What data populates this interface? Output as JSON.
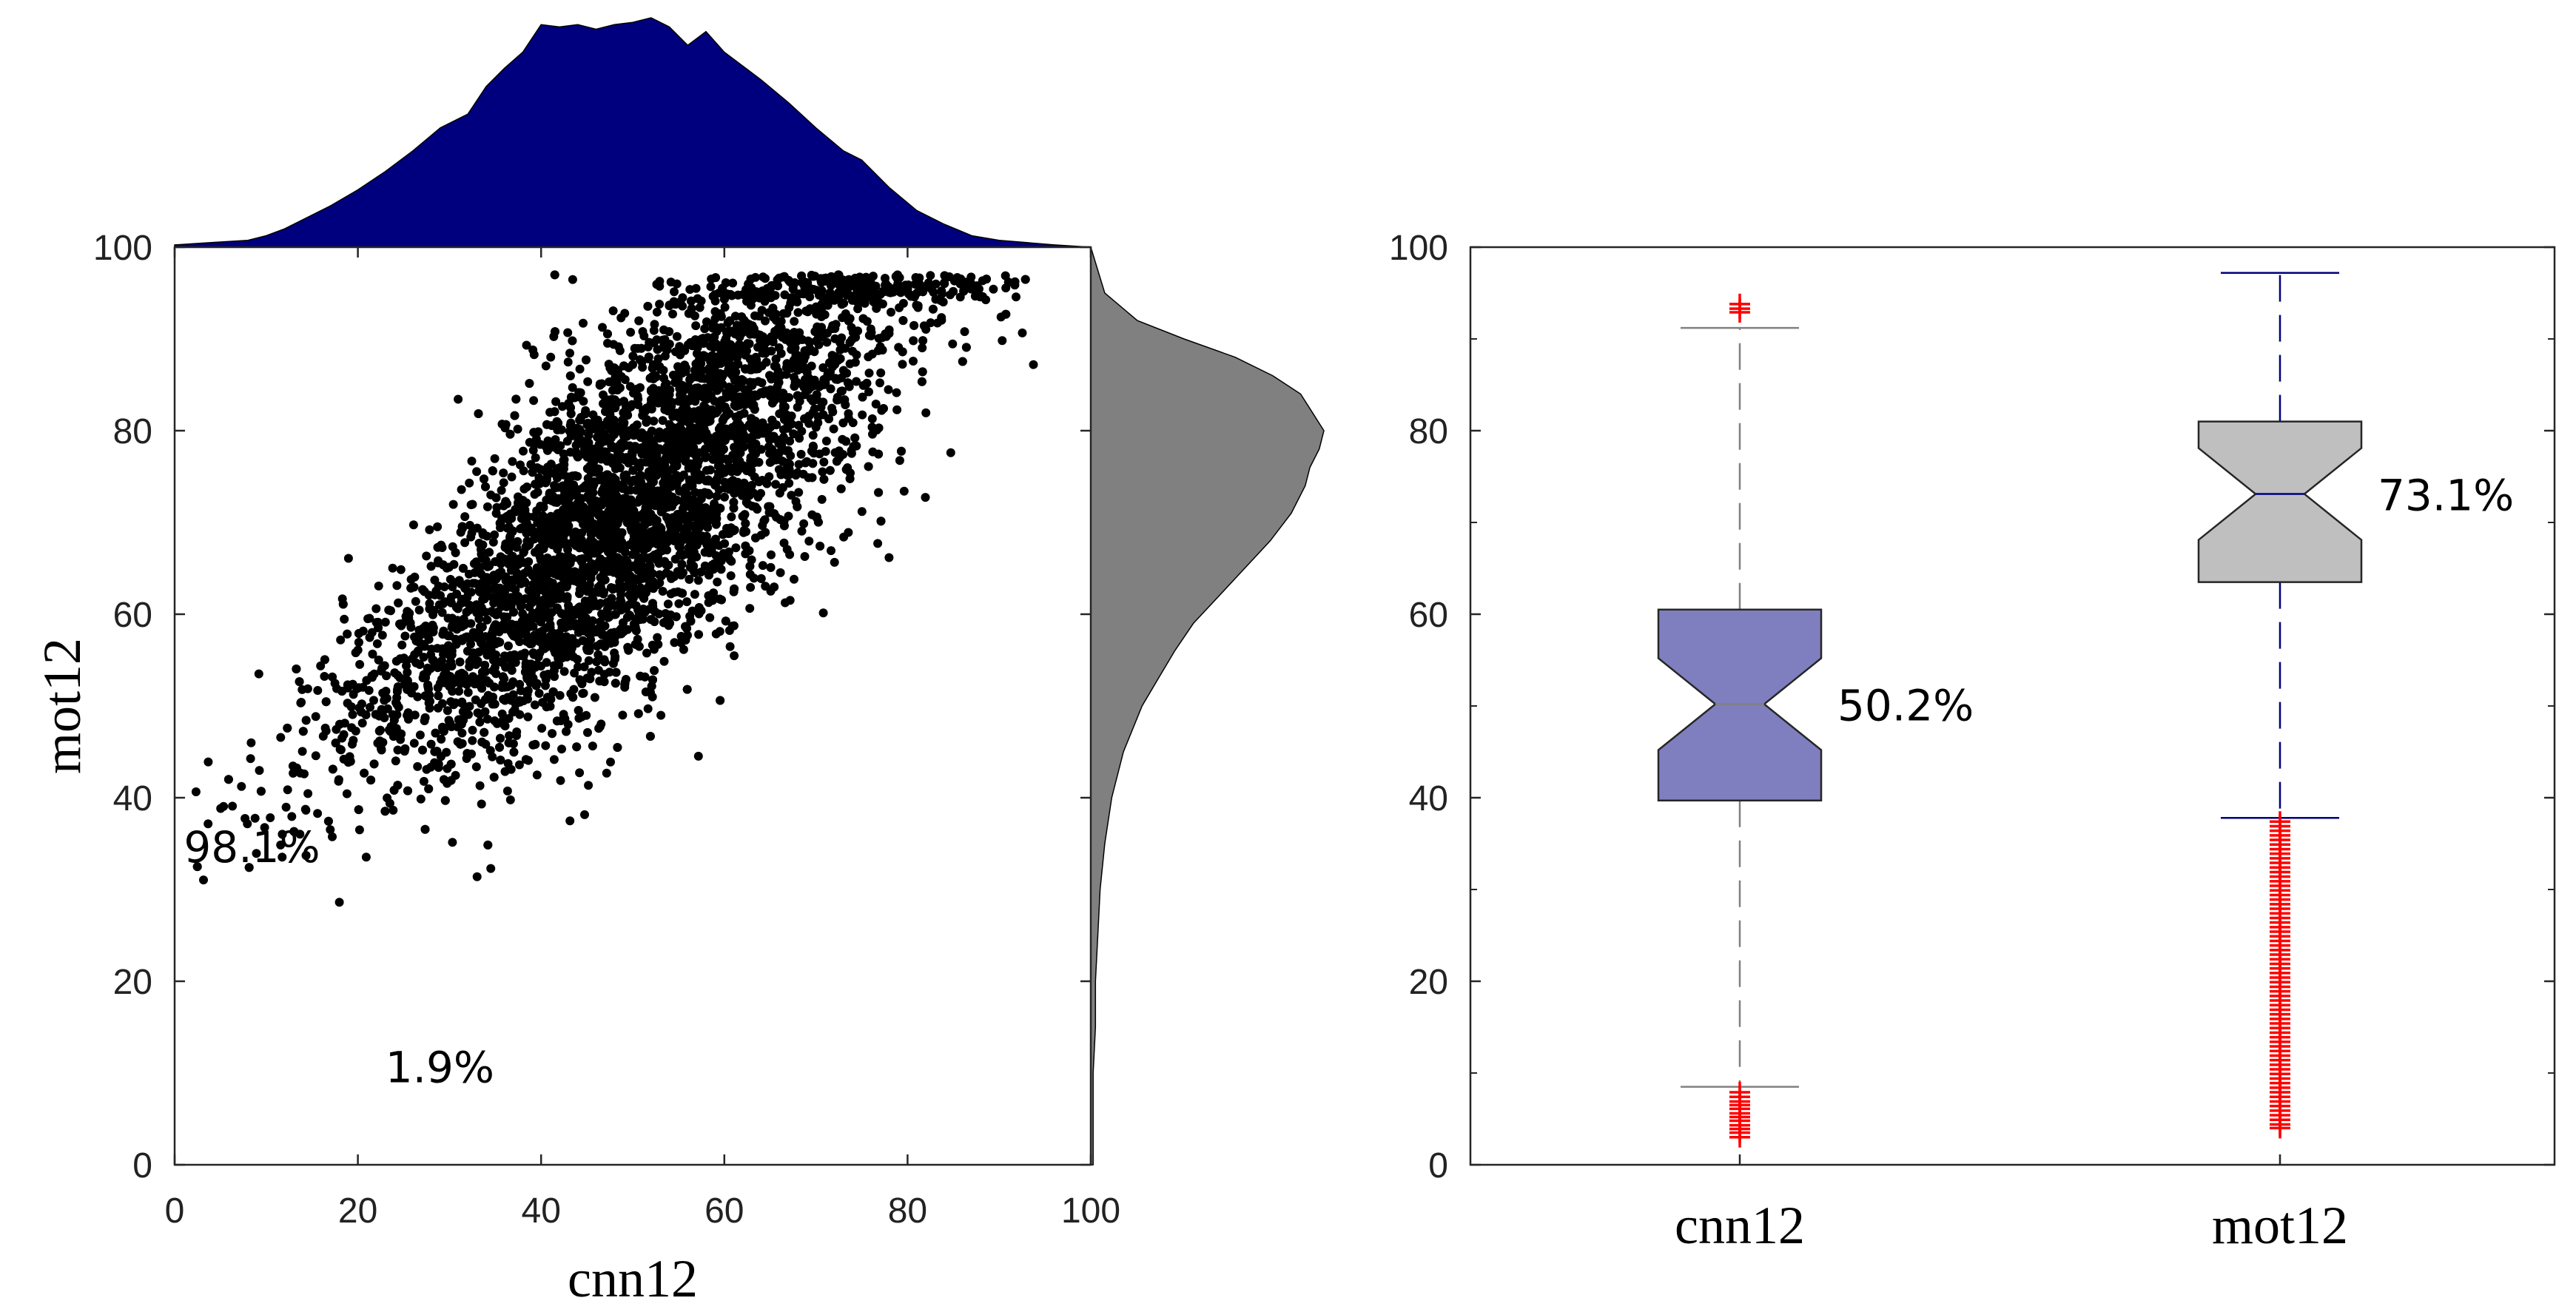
{
  "chart_data": [
    {
      "type": "scatter",
      "title": "",
      "xlabel": "cnn12",
      "ylabel": "mot12",
      "xlim": [
        0,
        100
      ],
      "ylim": [
        0,
        100
      ],
      "xticks": [
        "0",
        "20",
        "40",
        "60",
        "80",
        "100"
      ],
      "yticks": [
        "0",
        "20",
        "40",
        "60",
        "80",
        "100"
      ],
      "point_color": "#000000",
      "trend": {
        "slope": 0.78,
        "intercept": 33,
        "noise_sd": 9.5,
        "x_mean": 50,
        "x_sd": 15
      },
      "annotations": [
        {
          "text": "98.1%",
          "x": 1,
          "y": 33
        },
        {
          "text": "1.9%",
          "x": 23,
          "y": 9
        }
      ],
      "marginal_x": {
        "color": "#00007f",
        "x": [
          0,
          4,
          8,
          10,
          12,
          14,
          17,
          20,
          23,
          26,
          29,
          32,
          34,
          36,
          38,
          40,
          42,
          44,
          46,
          48,
          50,
          52,
          54,
          56,
          58,
          60,
          62,
          64,
          67,
          70,
          73,
          75,
          78,
          81,
          84,
          87,
          90,
          93,
          96,
          100
        ],
        "density": [
          0.01,
          0.02,
          0.03,
          0.05,
          0.08,
          0.12,
          0.18,
          0.25,
          0.33,
          0.42,
          0.52,
          0.58,
          0.7,
          0.78,
          0.85,
          0.97,
          0.96,
          0.97,
          0.95,
          0.97,
          0.98,
          1.0,
          0.96,
          0.88,
          0.94,
          0.85,
          0.79,
          0.73,
          0.63,
          0.52,
          0.42,
          0.38,
          0.26,
          0.16,
          0.1,
          0.05,
          0.03,
          0.02,
          0.01,
          0.0
        ]
      },
      "marginal_y": {
        "color": "#808080",
        "y": [
          0,
          5,
          10,
          15,
          20,
          25,
          30,
          35,
          40,
          45,
          50,
          53,
          56,
          59,
          62,
          65,
          68,
          71,
          74,
          76,
          78,
          80,
          82,
          84,
          86,
          88,
          90,
          92,
          95,
          100
        ],
        "density": [
          0.01,
          0.01,
          0.01,
          0.02,
          0.02,
          0.03,
          0.04,
          0.06,
          0.09,
          0.14,
          0.22,
          0.29,
          0.36,
          0.44,
          0.55,
          0.66,
          0.77,
          0.86,
          0.92,
          0.94,
          0.98,
          1.0,
          0.95,
          0.9,
          0.78,
          0.62,
          0.4,
          0.2,
          0.06,
          0.0
        ]
      }
    },
    {
      "type": "box",
      "title": "",
      "xlabel": "",
      "ylabel": "",
      "ylim": [
        0,
        100
      ],
      "yticks": [
        "0",
        "20",
        "40",
        "60",
        "80",
        "100"
      ],
      "categories": [
        "cnn12",
        "mot12"
      ],
      "boxes": [
        {
          "name": "cnn12",
          "q1": 39.7,
          "median": 50.2,
          "q3": 60.5,
          "whisker_low": 8.5,
          "whisker_high": 91.2,
          "notch_half_width": 0.3,
          "fill": "#7f7fbf",
          "whisker_color": "#808080",
          "median_label": "50.2%",
          "outliers": [
            93.8,
            93.3,
            92.9,
            7.9,
            7.4,
            6.9,
            6.5,
            6.1,
            5.6,
            5.2,
            4.8,
            4.3,
            3.9,
            3.5,
            3.0
          ]
        },
        {
          "name": "mot12",
          "q1": 63.5,
          "median": 73.1,
          "q3": 81.0,
          "whisker_low": 37.8,
          "whisker_high": 97.2,
          "notch_half_width": 0.3,
          "fill": "#bfbfbf",
          "whisker_color": "#00007f",
          "median_label": "73.1%",
          "outliers": [
            37.4,
            36.9,
            36.4,
            35.9,
            35.4,
            34.9,
            34.4,
            33.9,
            33.4,
            32.9,
            32.4,
            31.9,
            31.4,
            30.9,
            30.4,
            29.9,
            29.4,
            28.9,
            28.4,
            27.9,
            27.4,
            26.9,
            26.4,
            25.9,
            25.4,
            24.9,
            24.4,
            23.9,
            23.4,
            22.9,
            22.4,
            21.9,
            21.4,
            20.9,
            20.4,
            19.9,
            19.4,
            18.9,
            18.4,
            17.9,
            17.4,
            16.9,
            16.4,
            15.9,
            15.4,
            14.9,
            14.4,
            13.9,
            13.4,
            12.9,
            12.4,
            11.9,
            11.4,
            10.9,
            10.4,
            9.9,
            9.4,
            8.9,
            8.4,
            7.9,
            7.4,
            6.9,
            6.4,
            5.9,
            5.4,
            4.9,
            4.4,
            4.0
          ],
          "outlier_color": "#ff0000"
        }
      ]
    }
  ]
}
